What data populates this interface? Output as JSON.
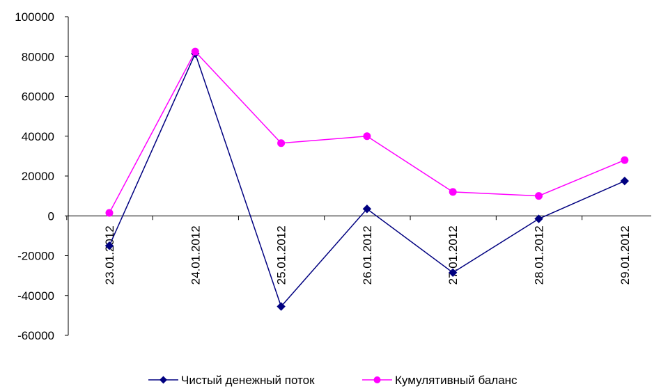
{
  "chart_data": {
    "type": "line",
    "title": "",
    "xlabel": "",
    "ylabel": "",
    "categories": [
      "23.01.2012",
      "24.01.2012",
      "25.01.2012",
      "26.01.2012",
      "27.01.2012",
      "28.01.2012",
      "29.01.2012"
    ],
    "ylim": [
      -60000,
      100000
    ],
    "yticks": [
      -60000,
      -40000,
      -20000,
      0,
      20000,
      40000,
      60000,
      80000,
      100000
    ],
    "ytick_labels": [
      "-60000",
      "-40000",
      "-20000",
      "0",
      "20000",
      "40000",
      "60000",
      "80000",
      "100000"
    ],
    "grid": false,
    "legend_position": "bottom",
    "series": [
      {
        "name": "Чистый денежный поток",
        "color": "#000080",
        "marker": "diamond",
        "values": [
          -15000,
          81500,
          -45500,
          3500,
          -28500,
          -1500,
          17500
        ]
      },
      {
        "name": "Кумулятивный баланс",
        "color": "#ff00ff",
        "marker": "circle",
        "values": [
          1500,
          82500,
          36500,
          40000,
          12000,
          10000,
          28000
        ]
      }
    ]
  }
}
